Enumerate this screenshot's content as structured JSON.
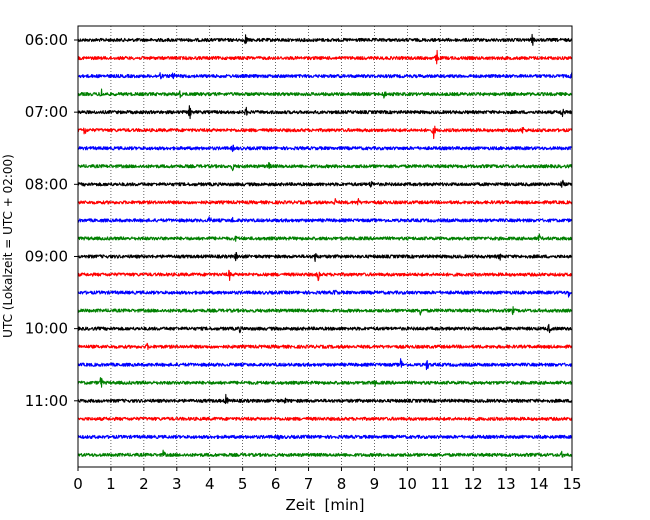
{
  "chart_data": {
    "type": "line",
    "title": "",
    "xlabel": "Zeit  [min]",
    "ylabel": "UTC (Lokalzeit = UTC + 02:00)",
    "xlim": [
      0,
      15
    ],
    "x_ticks": [
      0,
      1,
      2,
      3,
      4,
      5,
      6,
      7,
      8,
      9,
      10,
      11,
      12,
      13,
      14,
      15
    ],
    "y_tick_labels": [
      "06:00",
      "07:00",
      "08:00",
      "09:00",
      "10:00",
      "11:00"
    ],
    "grid": "vertical dotted at each minute",
    "trace_colors": [
      "#000000",
      "#ff0000",
      "#0000ff",
      "#008000"
    ],
    "rows": [
      {
        "start": "06:00",
        "color": "#000000",
        "events": [
          [
            5.1,
            0.8
          ],
          [
            13.8,
            0.6
          ]
        ]
      },
      {
        "start": "06:15",
        "color": "#ff0000",
        "events": [
          [
            10.9,
            1.0
          ]
        ]
      },
      {
        "start": "06:30",
        "color": "#0000ff",
        "events": [
          [
            2.5,
            0.5
          ],
          [
            2.9,
            0.6
          ],
          [
            15.0,
            0.5
          ]
        ]
      },
      {
        "start": "06:45",
        "color": "#008000",
        "events": [
          [
            0.7,
            0.7
          ],
          [
            3.1,
            0.4
          ],
          [
            9.3,
            0.5
          ]
        ]
      },
      {
        "start": "07:00",
        "color": "#000000",
        "events": [
          [
            3.4,
            1.0
          ],
          [
            5.1,
            0.5
          ],
          [
            14.7,
            1.0
          ]
        ]
      },
      {
        "start": "07:15",
        "color": "#ff0000",
        "events": [
          [
            0.2,
            0.6
          ],
          [
            10.8,
            1.0
          ],
          [
            13.5,
            0.4
          ]
        ]
      },
      {
        "start": "07:30",
        "color": "#0000ff",
        "events": [
          [
            4.7,
            0.3
          ]
        ]
      },
      {
        "start": "07:45",
        "color": "#008000",
        "events": [
          [
            4.7,
            0.4
          ],
          [
            5.8,
            0.4
          ]
        ]
      },
      {
        "start": "08:00",
        "color": "#000000",
        "events": [
          [
            8.9,
            0.6
          ],
          [
            14.7,
            0.6
          ]
        ]
      },
      {
        "start": "08:15",
        "color": "#ff0000",
        "events": [
          [
            7.8,
            0.4
          ],
          [
            8.5,
            0.4
          ]
        ]
      },
      {
        "start": "08:30",
        "color": "#0000ff",
        "events": [
          [
            4.0,
            0.4
          ],
          [
            4.7,
            0.3
          ]
        ]
      },
      {
        "start": "08:45",
        "color": "#008000",
        "events": [
          [
            4.8,
            0.3
          ],
          [
            14.0,
            0.4
          ]
        ]
      },
      {
        "start": "09:00",
        "color": "#000000",
        "events": [
          [
            4.8,
            0.5
          ],
          [
            7.2,
            0.6
          ],
          [
            12.8,
            0.4
          ]
        ]
      },
      {
        "start": "09:15",
        "color": "#ff0000",
        "events": [
          [
            4.6,
            0.6
          ],
          [
            7.3,
            0.7
          ]
        ]
      },
      {
        "start": "09:30",
        "color": "#0000ff",
        "events": [
          [
            7.8,
            0.4
          ],
          [
            14.9,
            0.5
          ]
        ]
      },
      {
        "start": "09:45",
        "color": "#008000",
        "events": [
          [
            10.4,
            0.5
          ],
          [
            13.2,
            0.4
          ]
        ]
      },
      {
        "start": "10:00",
        "color": "#000000",
        "events": [
          [
            4.9,
            0.4
          ],
          [
            14.3,
            0.6
          ]
        ]
      },
      {
        "start": "10:15",
        "color": "#ff0000",
        "events": [
          [
            2.1,
            0.3
          ]
        ]
      },
      {
        "start": "10:30",
        "color": "#0000ff",
        "events": [
          [
            9.8,
            0.8
          ],
          [
            10.6,
            0.7
          ]
        ]
      },
      {
        "start": "10:45",
        "color": "#008000",
        "events": [
          [
            0.7,
            0.8
          ],
          [
            9.0,
            0.4
          ]
        ]
      },
      {
        "start": "11:00",
        "color": "#000000",
        "events": [
          [
            4.5,
            0.8
          ],
          [
            6.3,
            0.3
          ]
        ]
      },
      {
        "start": "11:15",
        "color": "#ff0000",
        "events": []
      },
      {
        "start": "11:30",
        "color": "#0000ff",
        "events": [
          [
            6.1,
            0.3
          ]
        ]
      },
      {
        "start": "11:45",
        "color": "#008000",
        "events": [
          [
            2.6,
            0.5
          ],
          [
            14.7,
            0.3
          ]
        ]
      }
    ]
  }
}
